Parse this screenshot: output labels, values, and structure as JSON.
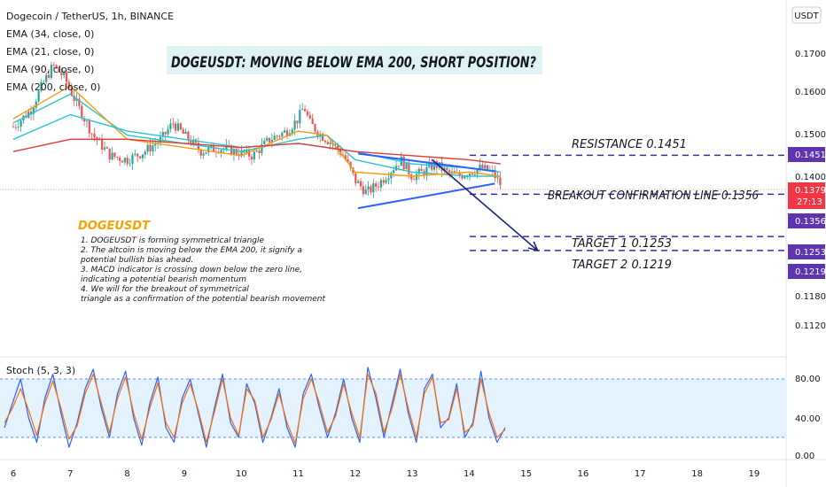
{
  "header": {
    "symbol_title": "Dogecoin / TetherUS, 1h, BINANCE",
    "currency": "USDT"
  },
  "indicators": [
    {
      "label": "EMA (34, close, 0)",
      "color": "#2ec4c4"
    },
    {
      "label": "EMA (21, close, 0)",
      "color": "#f39c12"
    },
    {
      "label": "EMA (90, close, 0)",
      "color": "#26c6da"
    },
    {
      "label": "EMA (200, close, 0)",
      "color": "#e53935"
    }
  ],
  "headline": "DOGEUSDT: MOVING BELOW EMA 200, SHORT POSITION?",
  "note": {
    "title": "DOGEUSDT",
    "lines": [
      "1. DOGEUSDT is forming symmetrical triangle",
      "2. The altcoin is moving below the EMA 200, it signify a",
      "potential bullish bias ahead.",
      "3. MACD indicator is crossing down below the zero line,",
      "indicating a potential bearish momentum",
      "4. We will for the breakout of symmetrical",
      "triangle as a confirmation of the potential bearish movement"
    ]
  },
  "levels": [
    {
      "label": "RESISTANCE  0.1451",
      "price": 0.1451,
      "tag": "0.1451",
      "tag_color": "#5e35b1"
    },
    {
      "label": "BREAKOUT CONFIRMATION LINE  0.1356",
      "price": 0.1356,
      "tag": "0.1356",
      "tag_color": "#5e35b1"
    },
    {
      "label": "TARGET 1  0.1253",
      "price": 0.1253,
      "tag": "0.1253",
      "tag_color": "#5e35b1"
    },
    {
      "label": "TARGET 2  0.1219",
      "price": 0.1219,
      "tag": "0.1219",
      "tag_color": "#5e35b1"
    }
  ],
  "current_price": {
    "value": "0.1379",
    "countdown": "27:13",
    "color": "#f23645"
  },
  "price_axis": {
    "ticks": [
      "0.1700",
      "0.1600",
      "0.1500",
      "0.1400",
      "0.1180",
      "0.1120"
    ]
  },
  "time_axis": {
    "ticks": [
      "6",
      "7",
      "8",
      "9",
      "10",
      "11",
      "12",
      "13",
      "14",
      "15",
      "16",
      "17",
      "18",
      "19"
    ]
  },
  "stoch": {
    "label": "Stoch (5, 3, 3)",
    "ticks": [
      "80.00",
      "40.00",
      "0.00"
    ],
    "upper": 80,
    "lower": 20,
    "k_color": "#2962ff",
    "d_color": "#ff6d00",
    "band_color": "#e3f2fd"
  },
  "colors": {
    "bull": "#26a69a",
    "bear": "#ef5350",
    "level_line": "#3f2a9e",
    "triangle": "#2962ff",
    "arrow": "#1a237e",
    "headline_bg": "#dff3f5",
    "note_title": "#f4a300"
  },
  "chart_data": [
    {
      "type": "candlestick",
      "title": "Dogecoin / TetherUS, 1h, BINANCE",
      "x_ticks": [
        "6",
        "7",
        "8",
        "9",
        "10",
        "11",
        "12",
        "13",
        "14",
        "15",
        "16",
        "17",
        "18",
        "19"
      ],
      "y_ticks": [
        "0.1700",
        "0.1600",
        "0.1500",
        "0.1400",
        "0.1180",
        "0.1120"
      ],
      "ylim": [
        0.11,
        0.176
      ],
      "price_path": [
        [
          0,
          0.152
        ],
        [
          0.3,
          0.156
        ],
        [
          0.5,
          0.162
        ],
        [
          0.7,
          0.167
        ],
        [
          0.9,
          0.164
        ],
        [
          1.1,
          0.158
        ],
        [
          1.4,
          0.15
        ],
        [
          1.7,
          0.145
        ],
        [
          2.0,
          0.144
        ],
        [
          2.3,
          0.146
        ],
        [
          2.6,
          0.149
        ],
        [
          2.8,
          0.153
        ],
        [
          3.0,
          0.15
        ],
        [
          3.3,
          0.146
        ],
        [
          3.6,
          0.147
        ],
        [
          3.9,
          0.146
        ],
        [
          4.2,
          0.145
        ],
        [
          4.5,
          0.149
        ],
        [
          4.8,
          0.151
        ],
        [
          5.0,
          0.154
        ],
        [
          5.1,
          0.157
        ],
        [
          5.2,
          0.153
        ],
        [
          5.4,
          0.15
        ],
        [
          5.6,
          0.148
        ],
        [
          5.8,
          0.145
        ],
        [
          6.0,
          0.139
        ],
        [
          6.2,
          0.136
        ],
        [
          6.4,
          0.138
        ],
        [
          6.6,
          0.141
        ],
        [
          6.8,
          0.144
        ],
        [
          7.0,
          0.14
        ],
        [
          7.2,
          0.141
        ],
        [
          7.4,
          0.143
        ],
        [
          7.6,
          0.141
        ],
        [
          7.8,
          0.14
        ],
        [
          8.0,
          0.141
        ],
        [
          8.2,
          0.142
        ],
        [
          8.4,
          0.141
        ],
        [
          8.55,
          0.138
        ]
      ],
      "emas": [
        {
          "name": "EMA (34, close, 0)",
          "path": [
            [
              0,
              0.153
            ],
            [
              1.0,
              0.16
            ],
            [
              2.0,
              0.15
            ],
            [
              3.0,
              0.148
            ],
            [
              4.0,
              0.146
            ],
            [
              5.0,
              0.149
            ],
            [
              5.5,
              0.15
            ],
            [
              6.0,
              0.144
            ],
            [
              7.0,
              0.141
            ],
            [
              8.0,
              0.14
            ],
            [
              8.55,
              0.14
            ]
          ]
        },
        {
          "name": "EMA (21, close, 0)",
          "path": [
            [
              0,
              0.154
            ],
            [
              1.0,
              0.162
            ],
            [
              2.0,
              0.149
            ],
            [
              3.0,
              0.147
            ],
            [
              4.0,
              0.145
            ],
            [
              5.0,
              0.151
            ],
            [
              5.5,
              0.15
            ],
            [
              6.0,
              0.141
            ],
            [
              7.0,
              0.14
            ],
            [
              8.0,
              0.141
            ],
            [
              8.55,
              0.14
            ]
          ]
        },
        {
          "name": "EMA (90, close, 0)",
          "path": [
            [
              0,
              0.149
            ],
            [
              1.0,
              0.155
            ],
            [
              2.0,
              0.151
            ],
            [
              3.0,
              0.149
            ],
            [
              4.0,
              0.147
            ],
            [
              5.0,
              0.148
            ],
            [
              6.0,
              0.146
            ],
            [
              7.0,
              0.143
            ],
            [
              8.0,
              0.142
            ],
            [
              8.55,
              0.141
            ]
          ]
        },
        {
          "name": "EMA (200, close, 0)",
          "path": [
            [
              0,
              0.146
            ],
            [
              1.0,
              0.149
            ],
            [
              2.0,
              0.149
            ],
            [
              3.0,
              0.148
            ],
            [
              4.0,
              0.147
            ],
            [
              5.0,
              0.148
            ],
            [
              6.0,
              0.146
            ],
            [
              7.0,
              0.145
            ],
            [
              8.0,
              0.144
            ],
            [
              8.55,
              0.143
            ]
          ]
        }
      ],
      "horizontal_levels": [
        0.1451,
        0.1356,
        0.1253,
        0.1219
      ],
      "triangle": {
        "upper": [
          [
            6.05,
            0.1455
          ],
          [
            8.45,
            0.1412
          ]
        ],
        "lower": [
          [
            6.05,
            0.1322
          ],
          [
            8.45,
            0.1382
          ]
        ]
      },
      "projection_arrow": [
        [
          7.35,
          0.144
        ],
        [
          9.2,
          0.1219
        ]
      ]
    },
    {
      "type": "line",
      "title": "Stoch (5, 3, 3)",
      "y_ticks": [
        "80.00",
        "40.00",
        "0.00"
      ],
      "ylim": [
        0,
        100
      ],
      "series": [
        {
          "name": "%K",
          "values": [
            30,
            55,
            80,
            40,
            15,
            60,
            85,
            45,
            10,
            35,
            70,
            90,
            50,
            20,
            65,
            88,
            40,
            12,
            55,
            82,
            30,
            15,
            60,
            80,
            45,
            10,
            50,
            85,
            35,
            20,
            75,
            55,
            15,
            40,
            70,
            30,
            10,
            65,
            85,
            50,
            20,
            45,
            80,
            40,
            15,
            92,
            60,
            20,
            55,
            90,
            45,
            15,
            70,
            85,
            30,
            40,
            75,
            20,
            35,
            88,
            40,
            15,
            30
          ]
        },
        {
          "name": "%D",
          "values": [
            35,
            50,
            70,
            48,
            22,
            55,
            78,
            50,
            18,
            32,
            65,
            85,
            55,
            25,
            60,
            82,
            45,
            18,
            50,
            76,
            35,
            20,
            55,
            75,
            48,
            15,
            46,
            80,
            40,
            22,
            70,
            58,
            20,
            38,
            65,
            35,
            14,
            60,
            80,
            55,
            25,
            42,
            75,
            45,
            20,
            85,
            65,
            25,
            50,
            85,
            50,
            20,
            65,
            82,
            35,
            38,
            70,
            25,
            32,
            80,
            45,
            20,
            28
          ]
        }
      ]
    }
  ]
}
